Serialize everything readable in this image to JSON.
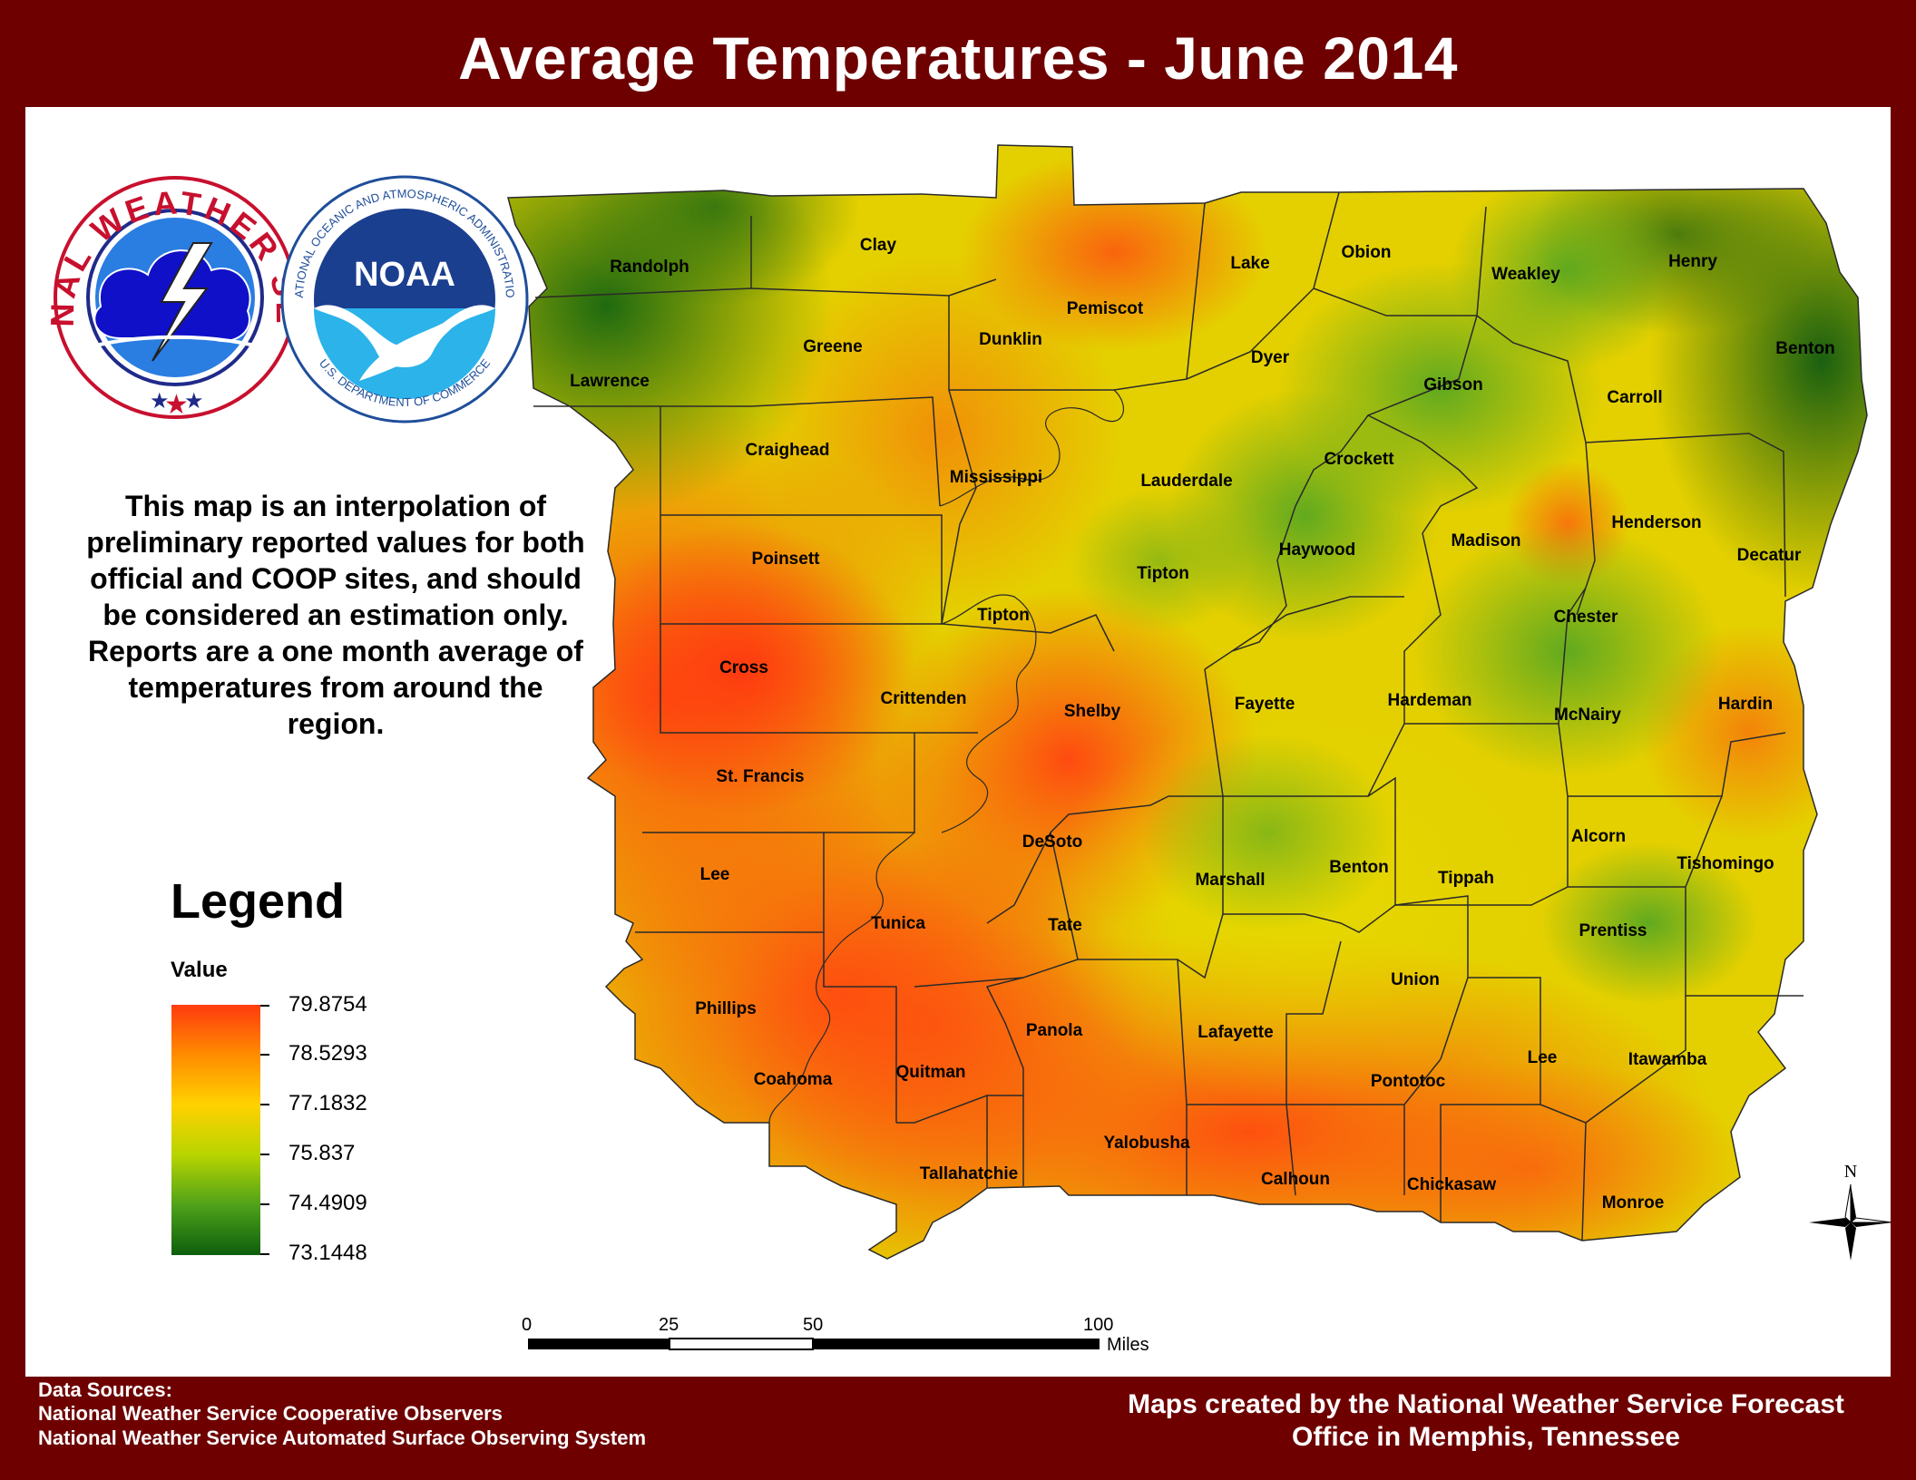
{
  "title": "Average Temperatures - June 2014",
  "logos": {
    "nws_text": "NATIONAL WEATHER SERVICE",
    "noaa_text": "NOAA",
    "noaa_ring_text": "NATIONAL OCEANIC AND ATMOSPHERIC ADMINISTRATION",
    "noaa_ring_text_bottom": "U.S. DEPARTMENT OF COMMERCE"
  },
  "blurb": "This map is an interpolation of preliminary reported values for both official and COOP sites, and should be considered an estimation only. Reports are a one month average of temperatures from around the region.",
  "legend": {
    "title": "Legend",
    "value_label": "Value",
    "values": [
      "79.8754",
      "78.5293",
      "77.1832",
      "75.837",
      "74.4909",
      "73.1448"
    ],
    "color_high": "#ff3b0f",
    "color_low": "#0d5e0d"
  },
  "scale_bar": {
    "labels": [
      "0",
      "25",
      "50",
      "100"
    ],
    "unit": "Miles"
  },
  "north_arrow": "N",
  "footer": {
    "sources_header": "Data Sources:",
    "source_1": "National Weather Service Cooperative Observers",
    "source_2": "National Weather Service Automated Surface Observing System",
    "credit_1": "Maps created by the National Weather Service Forecast",
    "credit_2": "Office in Memphis, Tennessee"
  },
  "counties": {
    "randolph": "Randolph",
    "clay": "Clay",
    "lawrence": "Lawrence",
    "greene": "Greene",
    "dunklin": "Dunklin",
    "pemiscot": "Pemiscot",
    "lake": "Lake",
    "obion": "Obion",
    "weakley": "Weakley",
    "henry": "Henry",
    "benton_tn": "Benton",
    "craighead": "Craighead",
    "mississippi": "Mississippi",
    "dyer": "Dyer",
    "gibson": "Gibson",
    "carroll": "Carroll",
    "crockett": "Crockett",
    "lauderdale": "Lauderdale",
    "poinsett": "Poinsett",
    "haywood": "Haywood",
    "madison": "Madison",
    "henderson": "Henderson",
    "decatur": "Decatur",
    "tipton": "Tipton",
    "tipton_2": "Tipton",
    "chester": "Chester",
    "cross": "Cross",
    "crittenden": "Crittenden",
    "shelby": "Shelby",
    "fayette": "Fayette",
    "hardeman": "Hardeman",
    "mcnairy": "McNairy",
    "hardin": "Hardin",
    "st_francis": "St. Francis",
    "desoto": "DeSoto",
    "marshall": "Marshall",
    "benton_ms": "Benton",
    "tippah": "Tippah",
    "alcorn": "Alcorn",
    "tishomingo": "Tishomingo",
    "lee_ar": "Lee",
    "tunica": "Tunica",
    "tate": "Tate",
    "prentiss": "Prentiss",
    "union": "Union",
    "phillips": "Phillips",
    "panola": "Panola",
    "lafayette": "Lafayette",
    "lee_ms": "Lee",
    "itawamba": "Itawamba",
    "coahoma": "Coahoma",
    "quitman": "Quitman",
    "pontotoc": "Pontotoc",
    "yalobusha": "Yalobusha",
    "tallahatchie": "Tallahatchie",
    "calhoun": "Calhoun",
    "chickasaw": "Chickasaw",
    "monroe": "Monroe"
  }
}
